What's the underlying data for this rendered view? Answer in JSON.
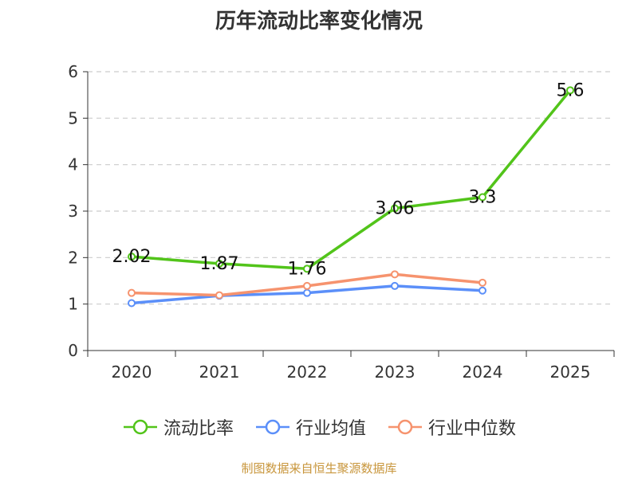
{
  "title": "历年流动比率变化情况",
  "source_note": "制图数据来自恒生聚源数据库",
  "chart_data": {
    "type": "line",
    "title": "历年流动比率变化情况",
    "xlabel": "",
    "ylabel": "",
    "categories": [
      "2020",
      "2021",
      "2022",
      "2023",
      "2024",
      "2025"
    ],
    "ylim": [
      0,
      6
    ],
    "yticks": [
      "0",
      "1",
      "2",
      "3",
      "4",
      "5",
      "6"
    ],
    "grid": true,
    "legend_position": "bottom",
    "series": [
      {
        "name": "流动比率",
        "color": "#52c41a",
        "show_labels": true,
        "values": [
          2.02,
          1.87,
          1.76,
          3.06,
          3.3,
          5.6
        ],
        "labels": [
          "2.02",
          "1.87",
          "1.76",
          "3.06",
          "3.3",
          "5.6"
        ]
      },
      {
        "name": "行业均值",
        "color": "#5b8ff9",
        "show_labels": false,
        "values": [
          1.02,
          1.18,
          1.24,
          1.39,
          1.29,
          null
        ]
      },
      {
        "name": "行业中位数",
        "color": "#f6936e",
        "show_labels": false,
        "values": [
          1.24,
          1.19,
          1.39,
          1.64,
          1.46,
          null
        ]
      }
    ]
  }
}
